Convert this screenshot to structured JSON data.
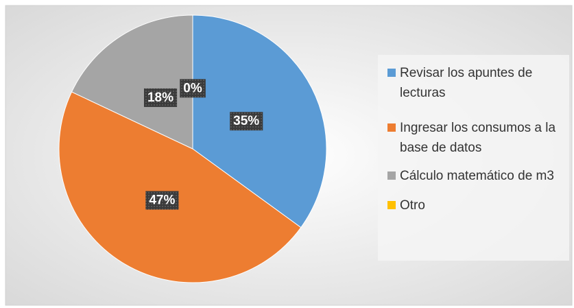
{
  "chart_data": {
    "type": "pie",
    "categories": [
      "Revisar los apuntes de lecturas",
      "Ingresar los consumos a la base de datos",
      "Cálculo matemático de m3",
      "Otro"
    ],
    "values": [
      35,
      47,
      18,
      0
    ],
    "value_labels": [
      "35%",
      "47%",
      "18%",
      "0%"
    ],
    "colors": [
      "#5b9bd5",
      "#ed7d31",
      "#a5a5a5",
      "#ffc000"
    ],
    "legend": "right"
  }
}
